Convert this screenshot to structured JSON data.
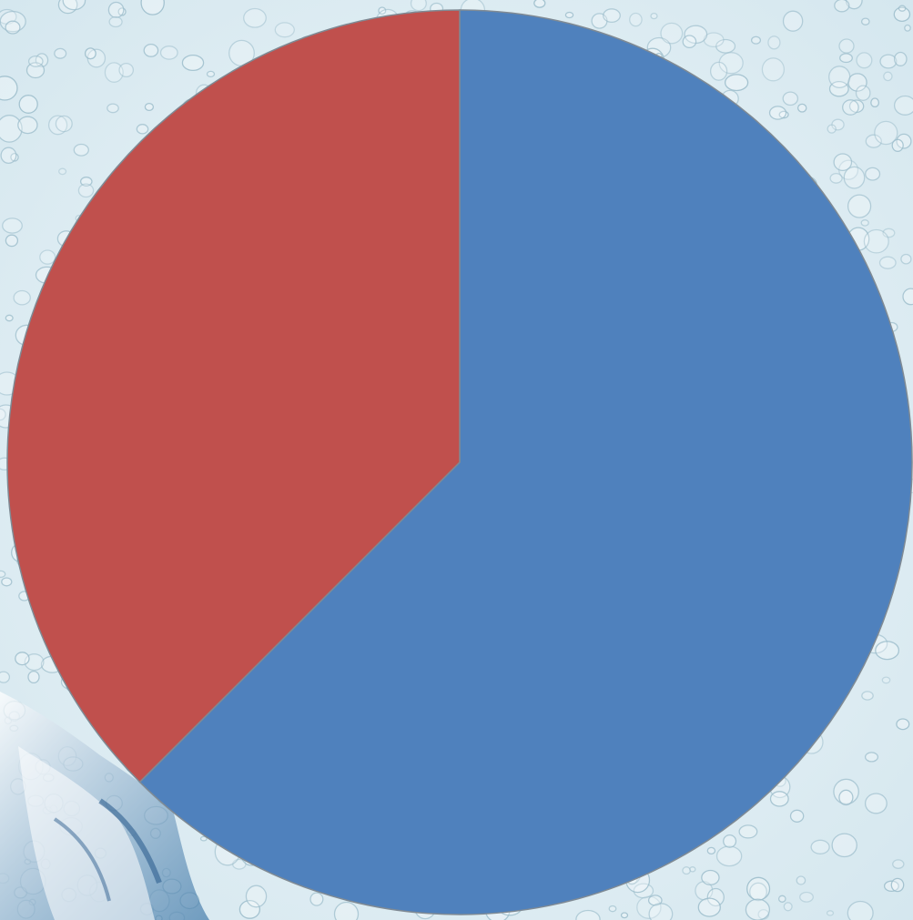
{
  "chart_data": {
    "type": "pie",
    "title": "",
    "start_angle_deg": 0,
    "direction": "clockwise",
    "legend": "none",
    "data_labels": false,
    "slices": [
      {
        "value": 62.5,
        "color": "#4f81bd"
      },
      {
        "value": 37.5,
        "color": "#c0504d"
      }
    ]
  },
  "colors": {
    "background": "#dfeef3",
    "droplet_outline": "#9fbfcd",
    "splash": "#3f78a8",
    "slice_border": "#7f8a94"
  }
}
